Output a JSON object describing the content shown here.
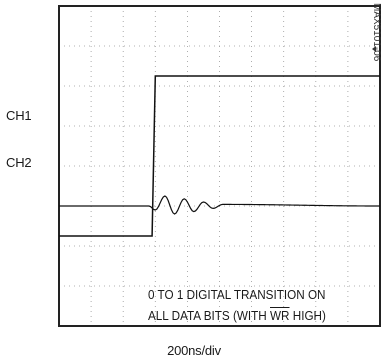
{
  "chart_data": {
    "type": "line",
    "title": "",
    "xlabel": "200ns/div",
    "ylabel": "",
    "grid": true,
    "divisions": {
      "x": 10,
      "y": 8
    },
    "channel_labels": [
      "CH1",
      "CH2"
    ],
    "annotation": {
      "line1": "0 TO 1 DIGITAL TRANSITION ON",
      "line2_before": "ALL DATA BITS (WITH ",
      "line2_overline": "WR",
      "line2_after": " HIGH)"
    },
    "figure_code": "MAX5101-06",
    "series": [
      {
        "channel": "CH1",
        "x_div": [
          0,
          2.9,
          3.0,
          10
        ],
        "y_div": [
          2.25,
          2.25,
          6.25,
          6.25
        ]
      },
      {
        "channel": "CH2",
        "x_div": [
          0,
          2.8,
          3.0,
          3.3,
          3.6,
          3.9,
          4.2,
          4.5,
          4.8,
          5.1,
          10
        ],
        "y_div": [
          3.0,
          3.0,
          2.9,
          3.25,
          2.8,
          3.18,
          2.86,
          3.1,
          2.94,
          3.04,
          3.0
        ]
      }
    ]
  }
}
